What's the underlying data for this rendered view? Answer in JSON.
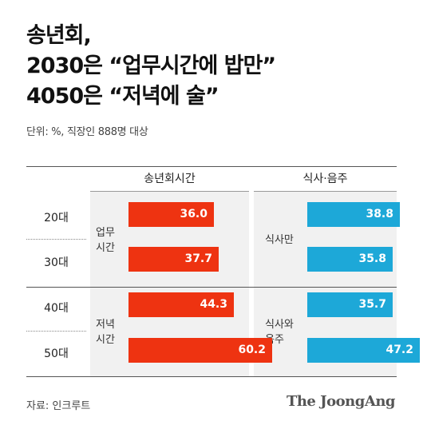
{
  "title_lines": [
    "송년회,",
    "2030은 “업무시간에 밥만”",
    "4050은 “저녁에 술”"
  ],
  "unit": "단위: %, 직장인 888명 대상",
  "source": "자료: 인크루트",
  "brand": "The JoongAng",
  "colors": {
    "red": "#ee3311",
    "blue": "#1da8d8"
  },
  "chart_data": {
    "type": "bar",
    "orientation": "horizontal",
    "categories": [
      "20대",
      "30대",
      "40대",
      "50대"
    ],
    "columns": [
      "송년회시간",
      "식사·음주"
    ],
    "groups": [
      {
        "time_label": [
          "업무",
          "시간"
        ],
        "type_label": [
          "식사만"
        ],
        "rows": [
          "20대",
          "30대"
        ]
      },
      {
        "time_label": [
          "저녁",
          "시간"
        ],
        "type_label": [
          "식사와",
          "음주"
        ],
        "rows": [
          "40대",
          "50대"
        ]
      }
    ],
    "series": [
      {
        "values": [
          36.0,
          37.7,
          44.3,
          60.2
        ],
        "labels": [
          "36.0",
          "37.7",
          "44.3",
          "60.2"
        ]
      },
      {
        "values": [
          38.8,
          35.8,
          35.7,
          47.2
        ],
        "labels": [
          "38.8",
          "35.8",
          "35.7",
          "47.2"
        ]
      }
    ],
    "xlim": [
      0,
      64
    ]
  }
}
